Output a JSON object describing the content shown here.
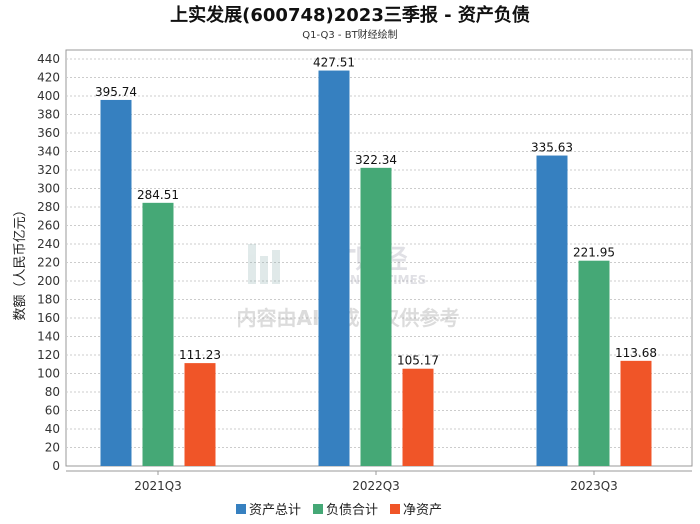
{
  "chart_data": {
    "type": "bar",
    "title": "上实发展(600748)2023三季报 - 资产负债",
    "subtitle": "Q1-Q3 - BT财经绘制",
    "xlabel": "",
    "ylabel": "数额（人民币亿元）",
    "ylim": [
      0,
      440
    ],
    "yticks": [
      0,
      20,
      40,
      60,
      80,
      100,
      120,
      140,
      160,
      180,
      200,
      220,
      240,
      260,
      280,
      300,
      320,
      340,
      360,
      380,
      400,
      420,
      440
    ],
    "grid": true,
    "legend_position": "bottom-center",
    "categories": [
      "2021Q3",
      "2022Q3",
      "2023Q3"
    ],
    "series": [
      {
        "name": "资产总计",
        "color": "#3680c0",
        "values": [
          395.74,
          427.51,
          335.63
        ],
        "labels": [
          "395.74",
          "427.51",
          "335.63"
        ]
      },
      {
        "name": "负债合计",
        "color": "#45a876",
        "values": [
          284.51,
          322.34,
          221.95
        ],
        "labels": [
          "284.51",
          "322.34",
          "221.95"
        ]
      },
      {
        "name": "净资产",
        "color": "#f05528",
        "values": [
          111.23,
          105.17,
          113.68
        ],
        "labels": [
          "111.23",
          "105.17",
          "113.68"
        ]
      }
    ]
  },
  "watermark": {
    "brand": "BT财经",
    "brand_en": "BUSINESSTIMES",
    "notice": "内容由AI生成，仅供参考"
  }
}
